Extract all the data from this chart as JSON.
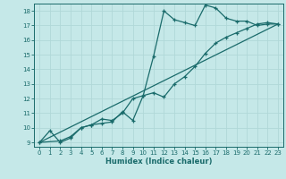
{
  "xlabel": "Humidex (Indice chaleur)",
  "bg_color": "#c5e8e8",
  "line_color": "#1a6b6b",
  "grid_color": "#b0d8d8",
  "xlim": [
    -0.5,
    23.5
  ],
  "ylim": [
    8.7,
    18.5
  ],
  "xticks": [
    0,
    1,
    2,
    3,
    4,
    5,
    6,
    7,
    8,
    9,
    10,
    11,
    12,
    13,
    14,
    15,
    16,
    17,
    18,
    19,
    20,
    21,
    22,
    23
  ],
  "yticks": [
    9,
    10,
    11,
    12,
    13,
    14,
    15,
    16,
    17,
    18
  ],
  "line1_x": [
    0,
    1,
    2,
    3,
    4,
    5,
    6,
    7,
    8,
    9,
    10,
    11,
    12,
    13,
    14,
    15,
    16,
    17,
    18,
    19,
    20,
    21,
    22,
    23
  ],
  "line1_y": [
    9.0,
    9.8,
    9.0,
    9.3,
    10.0,
    10.2,
    10.3,
    10.4,
    11.1,
    10.5,
    12.2,
    14.9,
    18.0,
    17.4,
    17.2,
    17.0,
    18.4,
    18.2,
    17.5,
    17.3,
    17.3,
    17.0,
    17.1,
    17.1
  ],
  "line2_x": [
    0,
    2,
    3,
    4,
    5,
    6,
    7,
    8,
    9,
    10,
    11,
    12,
    13,
    14,
    15,
    16,
    17,
    18,
    19,
    20,
    21,
    22,
    23
  ],
  "line2_y": [
    9.0,
    9.1,
    9.4,
    10.0,
    10.2,
    10.6,
    10.5,
    11.0,
    12.0,
    12.2,
    12.4,
    12.1,
    13.0,
    13.5,
    14.2,
    15.1,
    15.8,
    16.2,
    16.5,
    16.8,
    17.1,
    17.2,
    17.1
  ],
  "line3_x": [
    0,
    23
  ],
  "line3_y": [
    9.0,
    17.1
  ]
}
